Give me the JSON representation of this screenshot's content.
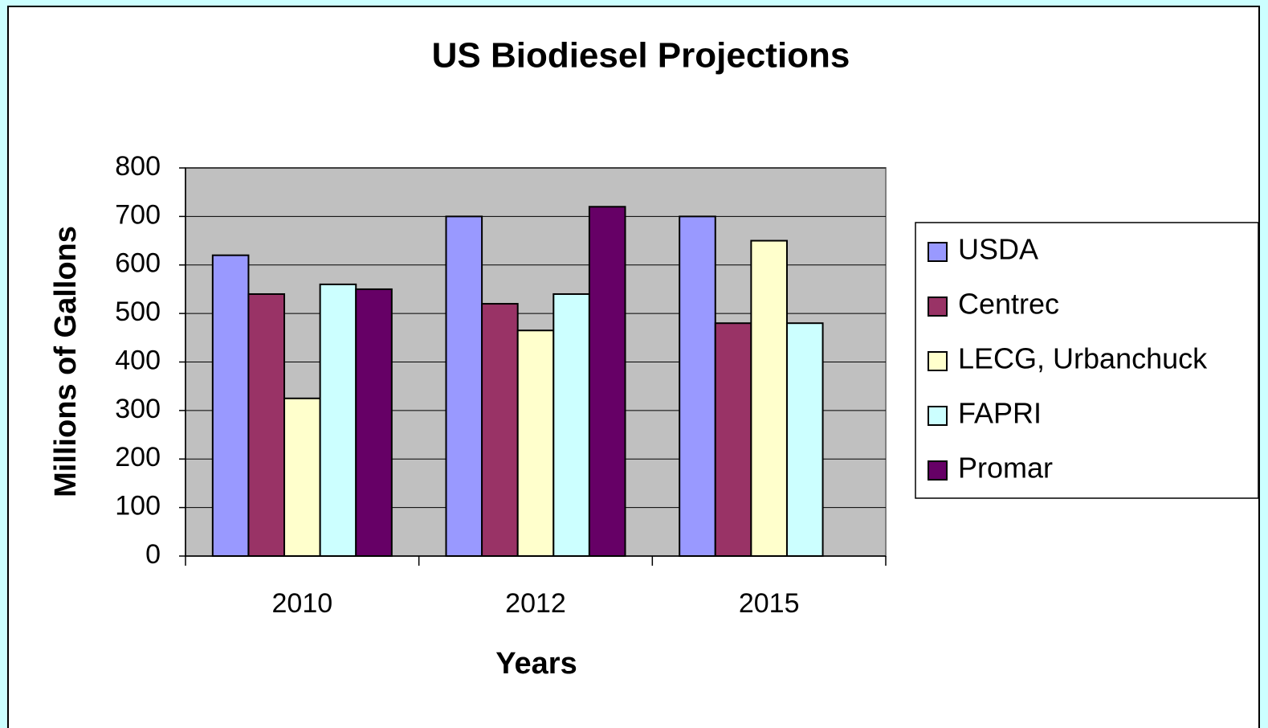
{
  "chart_data": {
    "type": "bar",
    "title": "US Biodiesel Projections",
    "x_label": "Years",
    "y_label": "Millions of Gallons",
    "categories": [
      "2010",
      "2012",
      "2015"
    ],
    "series": [
      {
        "name": "USDA",
        "color": "#9999ff",
        "values": [
          620,
          700,
          700
        ]
      },
      {
        "name": "Centrec",
        "color": "#993366",
        "values": [
          540,
          520,
          480
        ]
      },
      {
        "name": "LECG, Urbanchuck",
        "color": "#ffffcc",
        "values": [
          325,
          465,
          650
        ]
      },
      {
        "name": "FAPRI",
        "color": "#ccffff",
        "values": [
          560,
          540,
          480
        ]
      },
      {
        "name": "Promar",
        "color": "#660066",
        "values": [
          550,
          720,
          null
        ]
      }
    ],
    "ylim": [
      0,
      800
    ],
    "yticks": [
      0,
      100,
      200,
      300,
      400,
      500,
      600,
      700,
      800
    ],
    "grid": true,
    "legend": "right",
    "plot_background": "#c0c0c0"
  }
}
